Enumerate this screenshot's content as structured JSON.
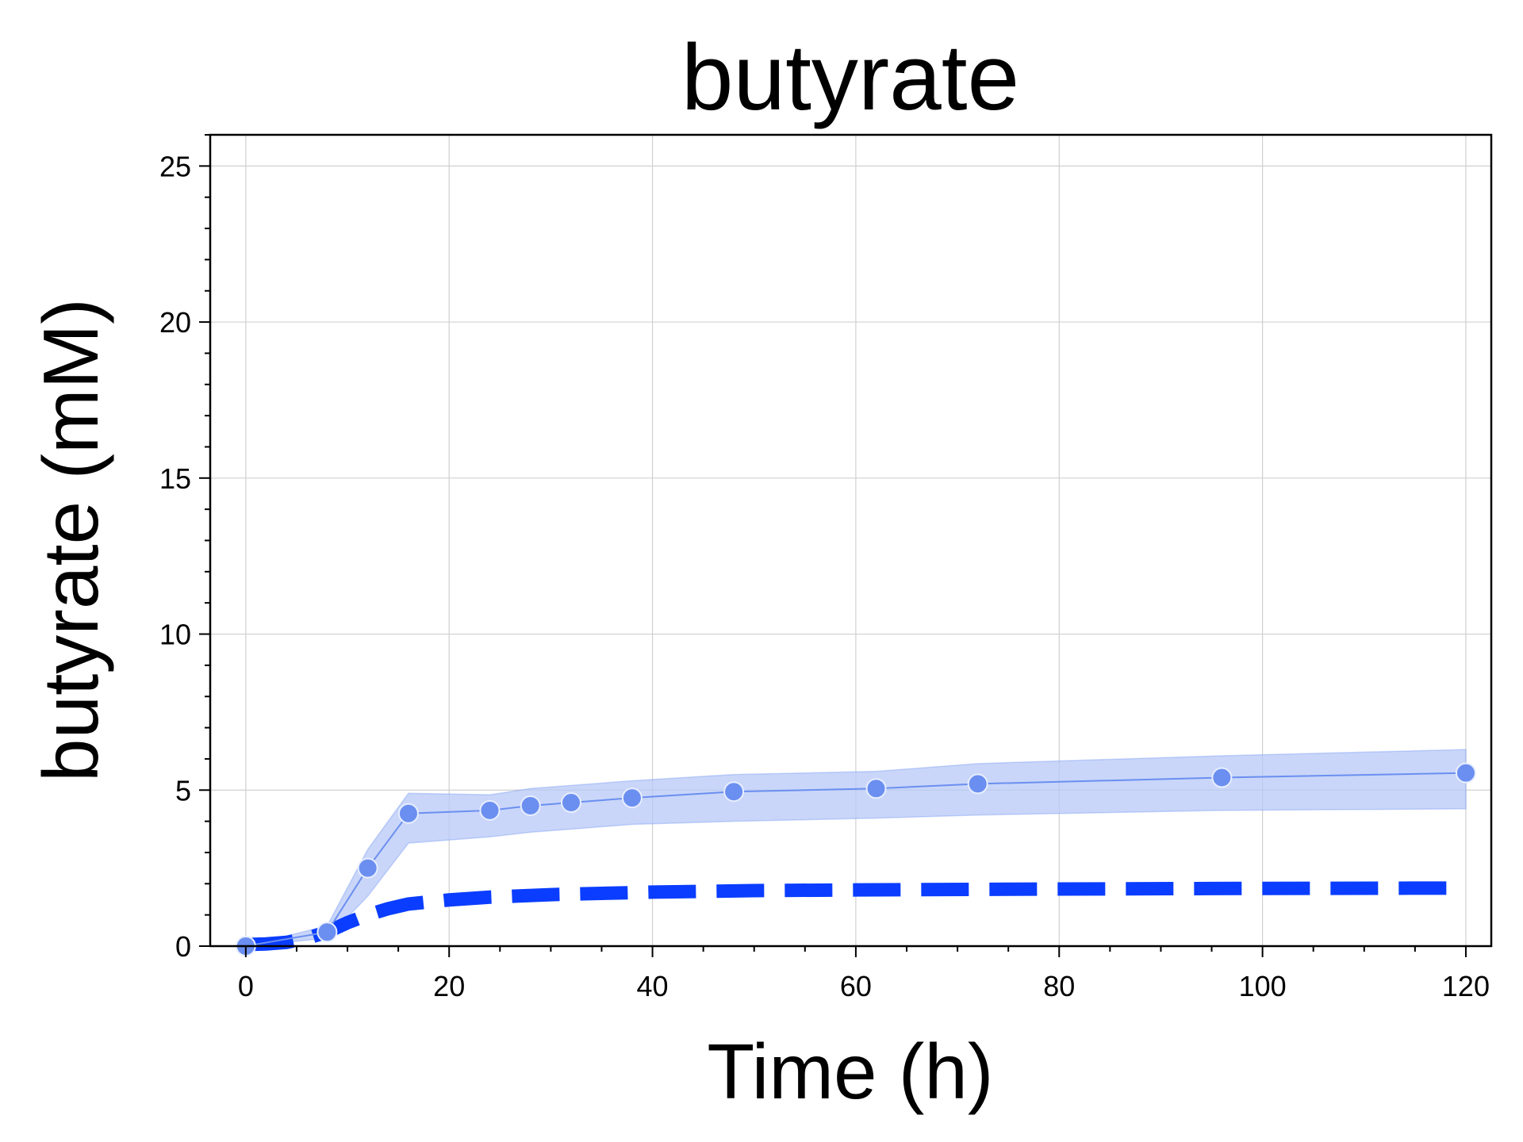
{
  "chart_data": {
    "type": "line",
    "title": "butyrate",
    "xlabel": "Time (h)",
    "ylabel": "butyrate (mM)",
    "xlim": [
      -3.5,
      122.5
    ],
    "ylim": [
      0,
      26
    ],
    "xticks": [
      0,
      20,
      40,
      60,
      80,
      100,
      120
    ],
    "yticks": [
      0,
      5,
      10,
      15,
      20,
      25
    ],
    "x_minor_step": 5,
    "y_minor_step": 1,
    "grid": true,
    "series": [
      {
        "kind": "observed-mean",
        "style": "line-with-markers-and-band",
        "color": "#6b8ff0",
        "band_color": "#b7c8f7",
        "x": [
          0,
          8,
          12,
          16,
          24,
          28,
          32,
          38,
          48,
          62,
          72,
          96,
          120
        ],
        "y": [
          0.0,
          0.45,
          2.5,
          4.25,
          4.35,
          4.5,
          4.6,
          4.75,
          4.95,
          5.05,
          5.2,
          5.4,
          5.55
        ],
        "lower": [
          0.0,
          0.25,
          1.6,
          3.3,
          3.5,
          3.65,
          3.75,
          3.9,
          4.0,
          4.1,
          4.2,
          4.35,
          4.4
        ],
        "upper": [
          0.0,
          0.65,
          3.1,
          4.9,
          4.85,
          5.05,
          5.15,
          5.3,
          5.5,
          5.6,
          5.85,
          6.1,
          6.3
        ]
      },
      {
        "kind": "model",
        "style": "dashed-line",
        "color": "#0a3dff",
        "x": [
          0,
          2,
          4,
          6,
          8,
          10,
          12,
          14,
          16,
          20,
          24,
          30,
          40,
          50,
          60,
          80,
          100,
          120
        ],
        "y": [
          0.05,
          0.07,
          0.12,
          0.25,
          0.45,
          0.75,
          1.0,
          1.2,
          1.35,
          1.48,
          1.57,
          1.65,
          1.73,
          1.78,
          1.8,
          1.83,
          1.85,
          1.86
        ]
      }
    ]
  }
}
